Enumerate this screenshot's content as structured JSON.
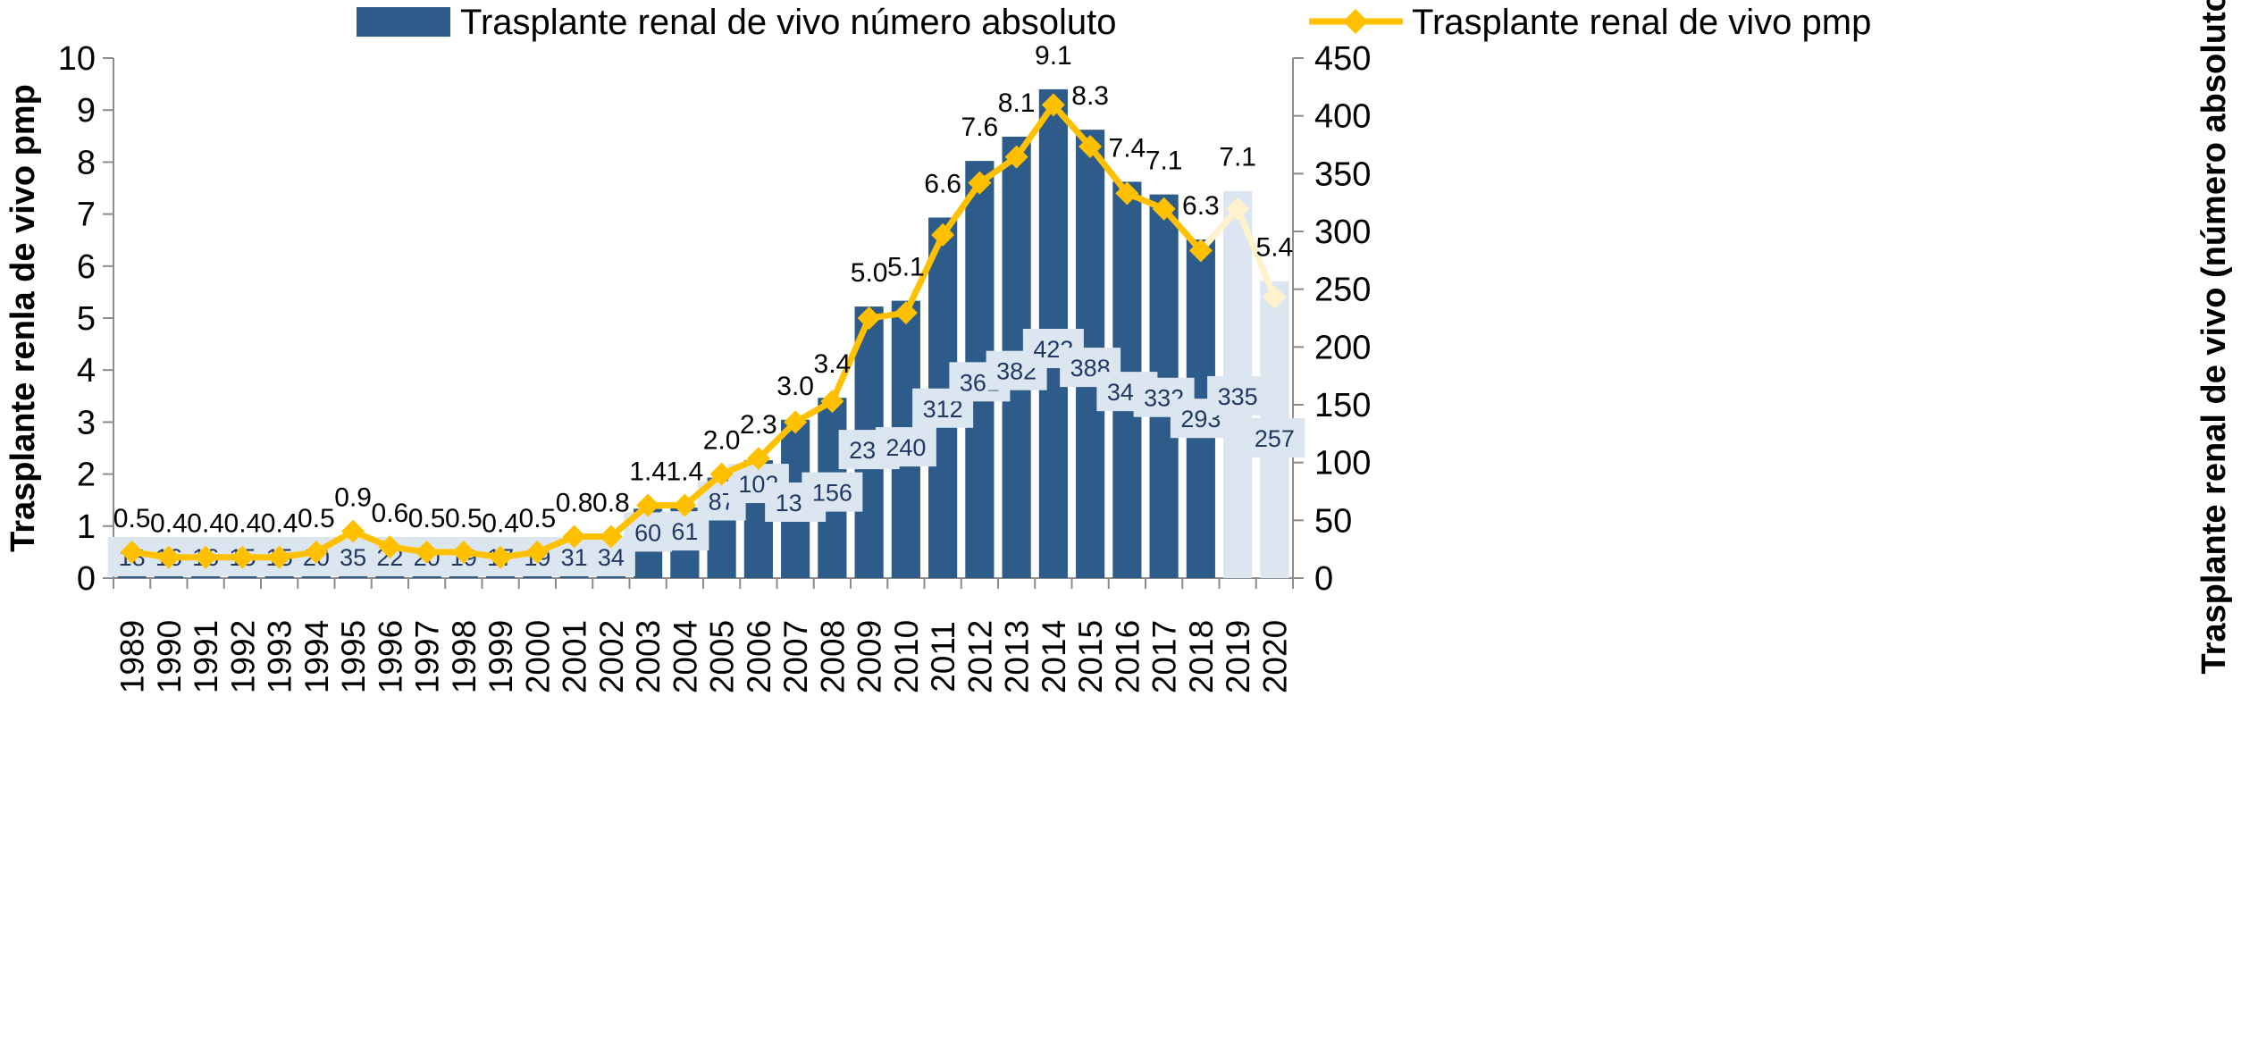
{
  "chart_data": {
    "type": "bar",
    "categories": [
      "1989",
      "1990",
      "1991",
      "1992",
      "1993",
      "1994",
      "1995",
      "1996",
      "1997",
      "1998",
      "1999",
      "2000",
      "2001",
      "2002",
      "2003",
      "2004",
      "2005",
      "2006",
      "2007",
      "2008",
      "2009",
      "2010",
      "2011",
      "2012",
      "2013",
      "2014",
      "2015",
      "2016",
      "2017",
      "2018",
      "2019",
      "2020"
    ],
    "series": [
      {
        "name": "Trasplante renal de vivo número absoluto",
        "type": "bar",
        "axis": "right",
        "values": [
          18,
          16,
          16,
          15,
          15,
          20,
          35,
          22,
          20,
          19,
          17,
          19,
          31,
          34,
          60,
          61,
          87,
          102,
          137,
          156,
          235,
          240,
          312,
          361,
          382,
          423,
          388,
          343,
          332,
          293,
          335,
          257
        ],
        "labels": [
          "18",
          "16",
          "16",
          "15",
          "15",
          "20",
          "35",
          "22",
          "20",
          "19",
          "17",
          "19",
          "31",
          "34",
          "60",
          "61",
          "87",
          "102",
          "137",
          "156",
          "235",
          "240",
          "312",
          "361",
          "382",
          "423",
          "388",
          "343",
          "332",
          "293",
          "335",
          "257"
        ],
        "color": "#2e5c8a",
        "faded_color": "#dce6f1",
        "faded_categories": [
          "2019",
          "2020"
        ]
      },
      {
        "name": "Trasplante renal de vivo pmp",
        "type": "line",
        "axis": "left",
        "values": [
          0.5,
          0.4,
          0.4,
          0.4,
          0.4,
          0.5,
          0.9,
          0.6,
          0.5,
          0.5,
          0.4,
          0.5,
          0.8,
          0.8,
          1.4,
          1.4,
          2.0,
          2.3,
          3.0,
          3.4,
          5.0,
          5.1,
          6.6,
          7.6,
          8.1,
          9.1,
          8.3,
          7.4,
          7.1,
          6.3,
          7.1,
          5.4
        ],
        "labels": [
          "0.5",
          "0.4",
          "0.4",
          "0.4",
          "0.4",
          "0.5",
          "0.9",
          "0.6",
          "0.5",
          "0.5",
          "0.4",
          "0.5",
          "0.8",
          "0.8",
          "1.4",
          "1.4",
          "2.0",
          "2.3",
          "3.0",
          "3.4",
          "5.0",
          "5.1",
          "6.6",
          "7.6",
          "8.1",
          "9.1",
          "8.3",
          "7.4",
          "7.1",
          "6.3",
          "7.1",
          "5.4"
        ],
        "color": "#ffc000",
        "faded_color": "#fff2cc",
        "marker": "diamond"
      }
    ],
    "ylabel": "Trasplante renla de vivo pmp",
    "ylim": [
      0,
      10
    ],
    "y_ticks": [
      "0",
      "1",
      "2",
      "3",
      "4",
      "5",
      "6",
      "7",
      "8",
      "9",
      "10"
    ],
    "y2label": "Trasplante renal de vivo (número absoluto)",
    "y2lim": [
      0,
      450
    ],
    "y2_ticks": [
      "0",
      "50",
      "100",
      "150",
      "200",
      "250",
      "300",
      "350",
      "400",
      "450"
    ],
    "legend_position": "top",
    "grid": false
  }
}
